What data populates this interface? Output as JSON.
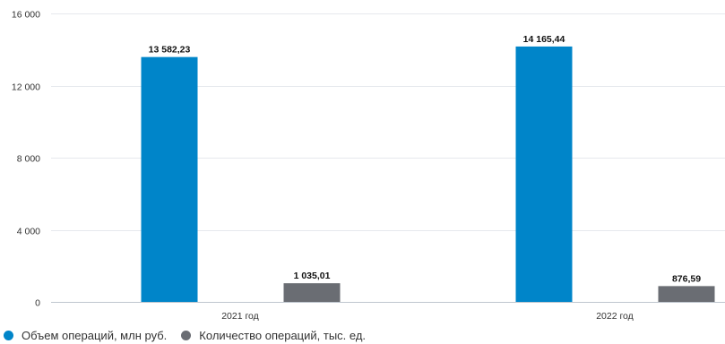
{
  "chart_data": {
    "type": "bar",
    "categories": [
      "2021 год",
      "2022 год"
    ],
    "series": [
      {
        "name": "Объем операций, млн руб.",
        "values": [
          13582.23,
          14165.44
        ],
        "labels": [
          "13 582,23",
          "14 165,44"
        ],
        "color": "#0085c9"
      },
      {
        "name": "Количество операций, тыс. ед.",
        "values": [
          1035.01,
          876.59
        ],
        "labels": [
          "1 035,01",
          "876,59"
        ],
        "color": "#6a6d73"
      }
    ],
    "ylim": [
      0,
      16000
    ],
    "yticks": [
      0,
      4000,
      8000,
      12000,
      16000
    ],
    "ytick_labels": [
      "0",
      "4 000",
      "8 000",
      "12 000",
      "16 000"
    ],
    "grid": true,
    "legend_position": "bottom-left"
  }
}
